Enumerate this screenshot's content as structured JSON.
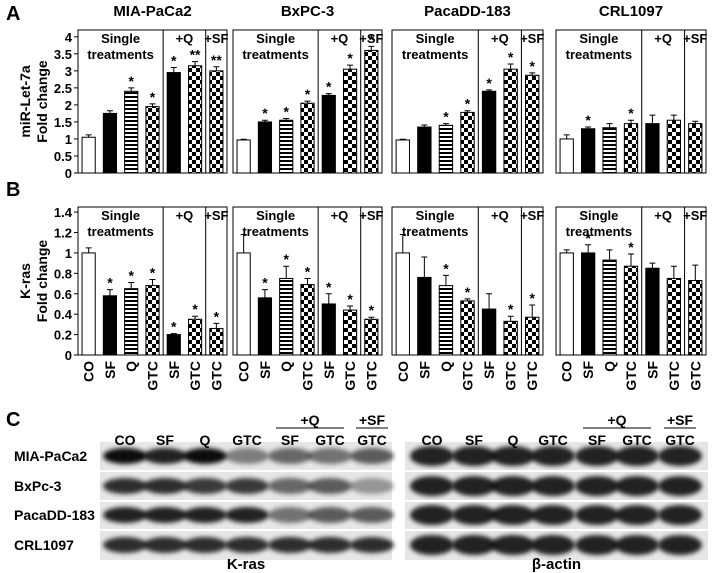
{
  "panel_labels": [
    "A",
    "B",
    "C"
  ],
  "chart_data": [
    {
      "type": "bar",
      "title": "MIA-PaCa2",
      "ylabel": [
        "miR-Let-7a",
        "Fold change"
      ],
      "ylim": [
        0,
        4.2
      ],
      "yticks": [
        0,
        0.5,
        1,
        1.5,
        2,
        2.5,
        3,
        3.5,
        4
      ],
      "values": [
        1.05,
        1.75,
        2.4,
        1.95,
        2.95,
        3.15,
        3.0
      ],
      "errors": [
        0.07,
        0.08,
        0.1,
        0.08,
        0.15,
        0.12,
        0.12
      ],
      "significance": [
        null,
        null,
        "*",
        "*",
        "*",
        "**",
        "**"
      ],
      "group_labels": {
        "single": [
          "Single",
          "treatments"
        ],
        "q": "+Q",
        "sf": "+SF"
      }
    },
    {
      "type": "bar",
      "title": "BxPC-3",
      "ylim": [
        0,
        4.2
      ],
      "values": [
        0.97,
        1.5,
        1.55,
        2.05,
        2.28,
        3.05,
        3.6
      ],
      "errors": [
        0.02,
        0.05,
        0.05,
        0.06,
        0.05,
        0.12,
        0.12
      ],
      "significance": [
        null,
        "*",
        "*",
        "*",
        "*",
        "*",
        "*"
      ],
      "group_labels": {
        "single": [
          "Single",
          "treatments"
        ],
        "q": "+Q",
        "sf": "+SF"
      }
    },
    {
      "type": "bar",
      "title": "PacaDD-183",
      "ylim": [
        0,
        4.2
      ],
      "values": [
        0.97,
        1.35,
        1.4,
        1.78,
        2.4,
        3.05,
        2.87
      ],
      "errors": [
        0.02,
        0.06,
        0.05,
        0.05,
        0.04,
        0.15,
        0.07
      ],
      "significance": [
        null,
        null,
        "*",
        "*",
        "*",
        "*",
        "*"
      ],
      "group_labels": {
        "single": [
          "Single",
          "treatments"
        ],
        "q": "+Q",
        "sf": "+SF"
      }
    },
    {
      "type": "bar",
      "title": "CRL1097",
      "ylim": [
        0,
        4.2
      ],
      "values": [
        1.0,
        1.3,
        1.33,
        1.45,
        1.45,
        1.55,
        1.45
      ],
      "errors": [
        0.12,
        0.05,
        0.12,
        0.1,
        0.25,
        0.15,
        0.07
      ],
      "significance": [
        null,
        "*",
        null,
        "*",
        null,
        null,
        null
      ],
      "group_labels": {
        "single": [
          "Single",
          "treatments"
        ],
        "q": "+Q",
        "sf": "+SF"
      }
    },
    {
      "type": "bar",
      "ylabel": [
        "K-ras",
        "Fold change"
      ],
      "ylim": [
        0,
        1.45
      ],
      "yticks": [
        0,
        0.2,
        0.4,
        0.6,
        0.8,
        1,
        1.2,
        1.4
      ],
      "categories": [
        "CO",
        "SF",
        "Q",
        "GTC",
        "SF",
        "GTC",
        "GTC"
      ],
      "values": [
        1.0,
        0.58,
        0.65,
        0.68,
        0.2,
        0.35,
        0.26
      ],
      "errors": [
        0.05,
        0.06,
        0.06,
        0.06,
        0.01,
        0.03,
        0.05
      ],
      "significance": [
        null,
        "*",
        "*",
        "*",
        "*",
        "*",
        "*"
      ],
      "group_labels": {
        "single": [
          "Single",
          "treatments"
        ],
        "q": "+Q",
        "sf": "+SF"
      }
    },
    {
      "type": "bar",
      "ylim": [
        0,
        1.45
      ],
      "categories": [
        "CO",
        "SF",
        "Q",
        "GTC",
        "SF",
        "GTC",
        "GTC"
      ],
      "values": [
        1.0,
        0.56,
        0.75,
        0.69,
        0.5,
        0.44,
        0.35
      ],
      "errors": [
        0.18,
        0.08,
        0.12,
        0.06,
        0.1,
        0.04,
        0.02
      ],
      "significance": [
        null,
        "*",
        "*",
        "*",
        "*",
        "*",
        "*"
      ],
      "group_labels": {
        "single": [
          "Single",
          "treatments"
        ],
        "q": "+Q",
        "sf": "+SF"
      }
    },
    {
      "type": "bar",
      "ylim": [
        0,
        1.45
      ],
      "categories": [
        "CO",
        "SF",
        "Q",
        "GTC",
        "SF",
        "GTC",
        "GTC"
      ],
      "values": [
        1.0,
        0.76,
        0.68,
        0.53,
        0.45,
        0.33,
        0.37
      ],
      "errors": [
        0.18,
        0.2,
        0.1,
        0.02,
        0.15,
        0.05,
        0.12
      ],
      "significance": [
        null,
        null,
        "*",
        "*",
        null,
        "*",
        "*"
      ],
      "group_labels": {
        "single": [
          "Single",
          "treatments"
        ],
        "q": "+Q",
        "sf": "+SF"
      }
    },
    {
      "type": "bar",
      "ylim": [
        0,
        1.45
      ],
      "categories": [
        "CO",
        "SF",
        "Q",
        "GTC",
        "SF",
        "GTC",
        "GTC"
      ],
      "values": [
        1.0,
        1.0,
        0.93,
        0.87,
        0.85,
        0.75,
        0.73
      ],
      "errors": [
        0.03,
        0.08,
        0.1,
        0.12,
        0.05,
        0.12,
        0.15
      ],
      "significance": [
        null,
        "*",
        null,
        "*",
        null,
        null,
        null
      ],
      "group_labels": {
        "single": [
          "Single",
          "treatments"
        ],
        "q": "+Q",
        "sf": "+SF"
      }
    }
  ],
  "blot": {
    "lanes": [
      "CO",
      "SF",
      "Q",
      "GTC",
      "SF",
      "GTC",
      "GTC"
    ],
    "groups": [
      "+Q",
      "+SF"
    ],
    "rows": [
      "MIA-PaCa2",
      "BxPc-3",
      "PacaDD-183",
      "CRL1097"
    ],
    "panels": [
      "K-ras",
      "β-actin"
    ]
  }
}
